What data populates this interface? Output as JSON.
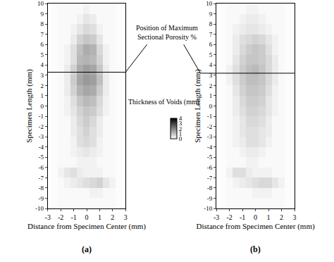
{
  "chart_data": [
    {
      "type": "heatmap",
      "panel": "(a)",
      "x_label": "Distance from Specimen Center (mm)",
      "y_label": "Specimen Length (mm)",
      "xlim": [
        -3,
        3
      ],
      "xticks": [
        -3,
        -2,
        -1,
        0,
        1,
        2,
        3
      ],
      "ylim": [
        -10,
        10
      ],
      "yticks": [
        -10,
        -9,
        -8,
        -7,
        -6,
        -5,
        -4,
        -3,
        -2,
        -1,
        0,
        1,
        2,
        3,
        4,
        5,
        6,
        7,
        8,
        9,
        10
      ],
      "annotation": [
        "Position of Maximum",
        "Sectional Porosity %"
      ],
      "max_porosity_position": 3.3,
      "colorbar": {
        "title": "Thickness of Voids (mm)",
        "range": [
          0,
          4
        ],
        "ticks": [
          0,
          1,
          2,
          3,
          4
        ],
        "color": "gray"
      },
      "x": [
        -2.5,
        -2,
        -1.5,
        -1,
        -0.5,
        0,
        0.5,
        1,
        1.5,
        2,
        2.5
      ],
      "y": [
        -9.5,
        -8.5,
        -7.5,
        -6.5,
        -5.5,
        -4.5,
        -3.5,
        -2.5,
        -1.5,
        -0.5,
        0.5,
        1.5,
        2.5,
        3.5,
        4.5,
        5.5,
        6.5,
        7.5,
        8.5,
        9.5
      ],
      "z": [
        [
          0.05,
          0.1,
          0.1,
          0.1,
          0.1,
          0.1,
          0.1,
          0.1,
          0.1,
          0.1,
          0.05
        ],
        [
          0.05,
          0.1,
          0.1,
          0.1,
          0.1,
          0.1,
          0.2,
          0.2,
          0.1,
          0.1,
          0.05
        ],
        [
          0.05,
          0.1,
          0.2,
          0.3,
          0.4,
          0.5,
          0.6,
          0.7,
          0.4,
          0.2,
          0.05
        ],
        [
          0.05,
          0.2,
          0.4,
          0.5,
          0.3,
          0.2,
          0.2,
          0.2,
          0.1,
          0.1,
          0.05
        ],
        [
          0.05,
          0.1,
          0.1,
          0.1,
          0.2,
          0.2,
          0.2,
          0.1,
          0.1,
          0.1,
          0.05
        ],
        [
          0.05,
          0.1,
          0.1,
          0.2,
          0.3,
          0.4,
          0.3,
          0.2,
          0.1,
          0.1,
          0.05
        ],
        [
          0.05,
          0.1,
          0.1,
          0.2,
          0.5,
          0.6,
          0.5,
          0.2,
          0.1,
          0.1,
          0.05
        ],
        [
          0.05,
          0.1,
          0.1,
          0.3,
          0.5,
          0.7,
          0.5,
          0.3,
          0.1,
          0.1,
          0.05
        ],
        [
          0.05,
          0.1,
          0.1,
          0.3,
          0.6,
          0.8,
          0.6,
          0.3,
          0.1,
          0.1,
          0.05
        ],
        [
          0.05,
          0.1,
          0.2,
          0.4,
          0.7,
          0.9,
          0.8,
          0.5,
          0.2,
          0.1,
          0.05
        ],
        [
          0.05,
          0.1,
          0.2,
          0.5,
          0.9,
          1.1,
          1.0,
          0.6,
          0.2,
          0.1,
          0.05
        ],
        [
          0.05,
          0.1,
          0.3,
          0.7,
          1.2,
          1.4,
          1.3,
          0.8,
          0.3,
          0.1,
          0.05
        ],
        [
          0.05,
          0.1,
          0.3,
          0.8,
          1.4,
          1.6,
          1.5,
          1.0,
          0.3,
          0.1,
          0.05
        ],
        [
          0.05,
          0.1,
          0.3,
          0.7,
          1.3,
          1.5,
          1.4,
          0.9,
          0.3,
          0.1,
          0.05
        ],
        [
          0.05,
          0.1,
          0.2,
          0.5,
          1.1,
          1.2,
          1.1,
          0.7,
          0.2,
          0.1,
          0.05
        ],
        [
          0.05,
          0.1,
          0.2,
          0.5,
          1.0,
          1.3,
          1.2,
          0.6,
          0.2,
          0.1,
          0.05
        ],
        [
          0.05,
          0.1,
          0.1,
          0.3,
          0.7,
          0.9,
          0.8,
          0.4,
          0.1,
          0.1,
          0.05
        ],
        [
          0.05,
          0.1,
          0.1,
          0.2,
          0.4,
          0.6,
          0.5,
          0.2,
          0.1,
          0.1,
          0.05
        ],
        [
          0.05,
          0.1,
          0.1,
          0.1,
          0.2,
          0.4,
          0.3,
          0.1,
          0.1,
          0.1,
          0.05
        ],
        [
          0.05,
          0.1,
          0.1,
          0.1,
          0.1,
          0.2,
          0.1,
          0.1,
          0.1,
          0.1,
          0.05
        ]
      ]
    },
    {
      "type": "heatmap",
      "panel": "(b)",
      "x_label": "Distance from Specimen Center (mm)",
      "y_label": "Specimen Length (mm)",
      "xlim": [
        -3,
        3
      ],
      "xticks": [
        -3,
        -2,
        -1,
        0,
        1,
        2,
        3
      ],
      "ylim": [
        -10,
        10
      ],
      "yticks": [
        -10,
        -9,
        -8,
        -7,
        -6,
        -5,
        -4,
        -3,
        -2,
        -1,
        0,
        1,
        2,
        3,
        4,
        5,
        6,
        7,
        8,
        9,
        10
      ],
      "max_porosity_position": 3.2,
      "x": [
        -2.5,
        -2,
        -1.5,
        -1,
        -0.5,
        0,
        0.5,
        1,
        1.5,
        2,
        2.5
      ],
      "y": [
        -9.5,
        -8.5,
        -7.5,
        -6.5,
        -5.5,
        -4.5,
        -3.5,
        -2.5,
        -1.5,
        -0.5,
        0.5,
        1.5,
        2.5,
        3.5,
        4.5,
        5.5,
        6.5,
        7.5,
        8.5,
        9.5
      ],
      "z": [
        [
          0.05,
          0.1,
          0.1,
          0.1,
          0.1,
          0.1,
          0.1,
          0.1,
          0.1,
          0.1,
          0.05
        ],
        [
          0.05,
          0.1,
          0.1,
          0.1,
          0.1,
          0.2,
          0.2,
          0.2,
          0.1,
          0.1,
          0.05
        ],
        [
          0.05,
          0.1,
          0.2,
          0.3,
          0.4,
          0.5,
          0.6,
          0.6,
          0.4,
          0.2,
          0.05
        ],
        [
          0.05,
          0.2,
          0.5,
          0.5,
          0.3,
          0.2,
          0.2,
          0.2,
          0.1,
          0.1,
          0.05
        ],
        [
          0.05,
          0.1,
          0.1,
          0.1,
          0.2,
          0.2,
          0.1,
          0.1,
          0.1,
          0.1,
          0.05
        ],
        [
          0.05,
          0.1,
          0.1,
          0.2,
          0.3,
          0.3,
          0.2,
          0.1,
          0.1,
          0.1,
          0.05
        ],
        [
          0.05,
          0.1,
          0.2,
          0.3,
          0.5,
          0.5,
          0.4,
          0.2,
          0.1,
          0.1,
          0.05
        ],
        [
          0.05,
          0.1,
          0.2,
          0.4,
          0.5,
          0.5,
          0.4,
          0.3,
          0.1,
          0.1,
          0.05
        ],
        [
          0.05,
          0.1,
          0.2,
          0.4,
          0.6,
          0.6,
          0.5,
          0.3,
          0.1,
          0.1,
          0.05
        ],
        [
          0.05,
          0.1,
          0.3,
          0.5,
          0.7,
          0.7,
          0.6,
          0.4,
          0.2,
          0.1,
          0.05
        ],
        [
          0.05,
          0.1,
          0.3,
          0.6,
          0.8,
          0.8,
          0.7,
          0.4,
          0.2,
          0.1,
          0.05
        ],
        [
          0.05,
          0.1,
          0.4,
          0.7,
          0.9,
          0.9,
          0.8,
          0.5,
          0.2,
          0.1,
          0.05
        ],
        [
          0.05,
          0.2,
          0.5,
          0.8,
          1.0,
          1.0,
          0.9,
          0.6,
          0.3,
          0.1,
          0.05
        ],
        [
          0.05,
          0.2,
          0.5,
          0.8,
          1.0,
          1.1,
          0.9,
          0.6,
          0.3,
          0.1,
          0.05
        ],
        [
          0.05,
          0.1,
          0.4,
          0.7,
          0.9,
          0.9,
          0.8,
          0.6,
          0.3,
          0.1,
          0.05
        ],
        [
          0.05,
          0.1,
          0.3,
          0.6,
          0.8,
          0.9,
          0.8,
          0.5,
          0.2,
          0.1,
          0.05
        ],
        [
          0.05,
          0.1,
          0.3,
          0.5,
          0.6,
          0.7,
          0.6,
          0.4,
          0.2,
          0.1,
          0.05
        ],
        [
          0.05,
          0.1,
          0.2,
          0.3,
          0.4,
          0.4,
          0.3,
          0.2,
          0.1,
          0.1,
          0.05
        ],
        [
          0.05,
          0.1,
          0.1,
          0.2,
          0.3,
          0.3,
          0.2,
          0.1,
          0.1,
          0.1,
          0.05
        ],
        [
          0.05,
          0.1,
          0.1,
          0.1,
          0.2,
          0.2,
          0.1,
          0.1,
          0.1,
          0.1,
          0.05
        ]
      ]
    }
  ]
}
